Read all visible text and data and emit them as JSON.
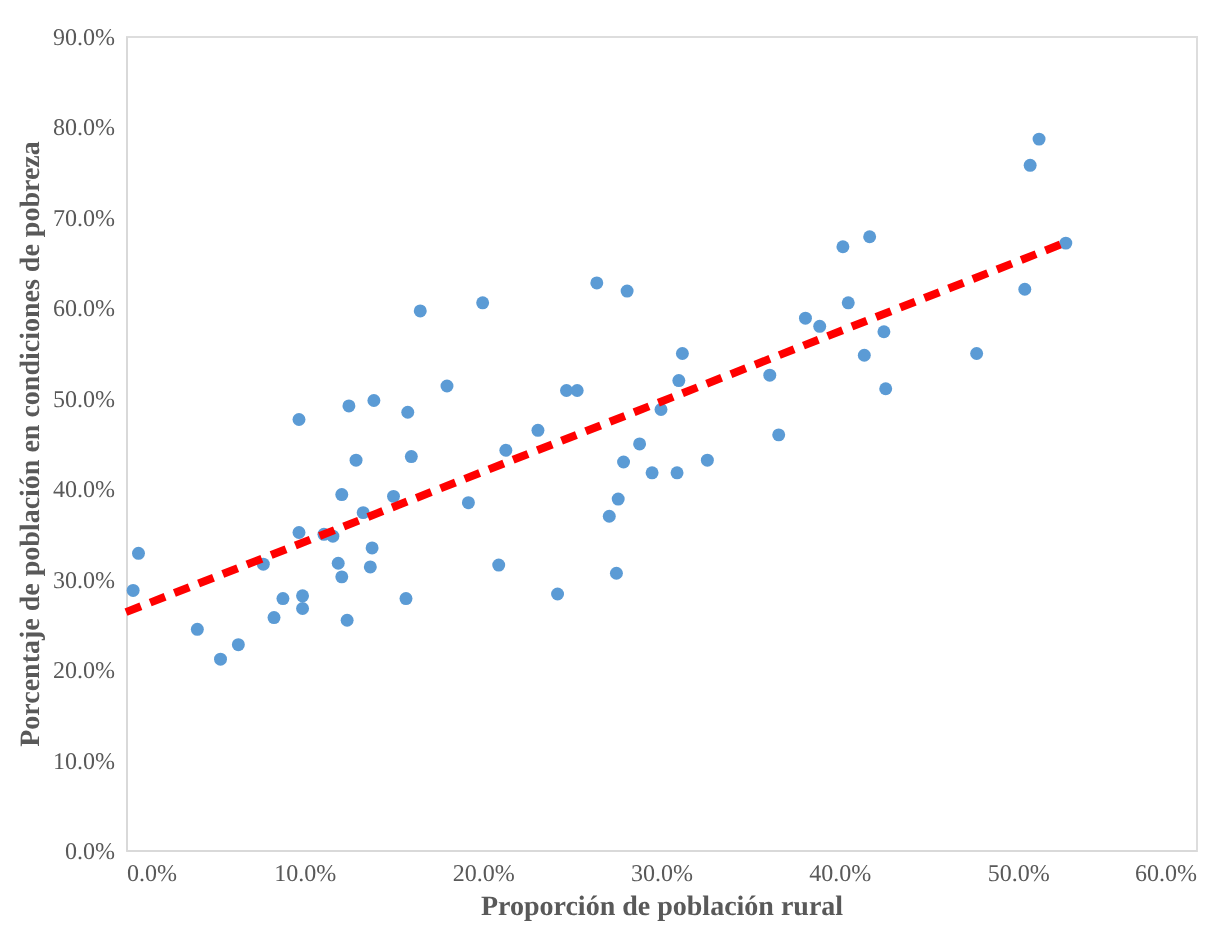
{
  "chart_data": {
    "type": "scatter",
    "xlabel": "Proporción de población rural",
    "ylabel": "Porcentaje de población en condiciones de pobreza",
    "xlim": [
      0,
      60
    ],
    "ylim": [
      0,
      90
    ],
    "xticks": [
      {
        "value": 0,
        "label": "0.0%"
      },
      {
        "value": 10,
        "label": "10.0%"
      },
      {
        "value": 20,
        "label": "20.0%"
      },
      {
        "value": 30,
        "label": "30.0%"
      },
      {
        "value": 40,
        "label": "40.0%"
      },
      {
        "value": 50,
        "label": "50.0%"
      },
      {
        "value": 60,
        "label": "60.0%"
      }
    ],
    "yticks": [
      {
        "value": 0,
        "label": "0.0%"
      },
      {
        "value": 10,
        "label": "10.0%"
      },
      {
        "value": 20,
        "label": "20.0%"
      },
      {
        "value": 30,
        "label": "30.0%"
      },
      {
        "value": 40,
        "label": "40.0%"
      },
      {
        "value": 50,
        "label": "50.0%"
      },
      {
        "value": 60,
        "label": "60.0%"
      },
      {
        "value": 70,
        "label": "70.0%"
      },
      {
        "value": 80,
        "label": "80.0%"
      },
      {
        "value": 90,
        "label": "90.0%"
      }
    ],
    "grid": false,
    "series": [
      {
        "color": "#5b9bd5",
        "marker": "circle",
        "x": [
          0.7,
          0.4,
          4.0,
          5.3,
          6.3,
          7.7,
          8.8,
          8.3,
          9.7,
          9.7,
          9.9,
          9.9,
          11.1,
          11.6,
          11.9,
          12.1,
          12.1,
          12.4,
          12.5,
          12.9,
          13.3,
          13.8,
          13.7,
          13.9,
          15.0,
          15.7,
          15.8,
          16.0,
          16.5,
          18.0,
          19.2,
          20.0,
          20.9,
          21.3,
          23.1,
          24.2,
          24.7,
          25.3,
          26.4,
          27.1,
          27.5,
          27.6,
          27.9,
          28.1,
          28.8,
          29.5,
          30.0,
          30.9,
          31.0,
          31.2,
          32.6,
          36.1,
          36.6,
          38.1,
          38.9,
          40.2,
          40.5,
          41.4,
          41.7,
          42.5,
          42.6,
          47.7,
          50.4,
          50.7,
          51.2,
          52.7
        ],
        "values": [
          32.8,
          28.7,
          24.4,
          21.1,
          22.7,
          31.6,
          27.8,
          25.7,
          47.6,
          35.1,
          28.1,
          26.7,
          34.9,
          34.7,
          31.7,
          30.2,
          39.3,
          25.4,
          49.1,
          43.1,
          37.3,
          33.4,
          31.3,
          49.7,
          39.1,
          27.8,
          48.4,
          43.5,
          59.6,
          51.3,
          38.4,
          60.5,
          31.5,
          44.2,
          46.4,
          28.3,
          50.8,
          50.8,
          62.7,
          36.9,
          30.6,
          38.8,
          42.9,
          61.8,
          44.9,
          41.7,
          48.7,
          41.7,
          51.9,
          54.9,
          43.1,
          52.5,
          45.9,
          58.8,
          57.9,
          66.7,
          60.5,
          54.7,
          67.8,
          57.3,
          51.0,
          54.9,
          62.0,
          75.7,
          78.6,
          67.1
        ]
      },
      {
        "type": "line",
        "color": "#ff0000",
        "line_style": "dashed",
        "marker": "none",
        "x": [
          0,
          52.6
        ],
        "values": [
          26.3,
          67.1
        ]
      }
    ]
  }
}
